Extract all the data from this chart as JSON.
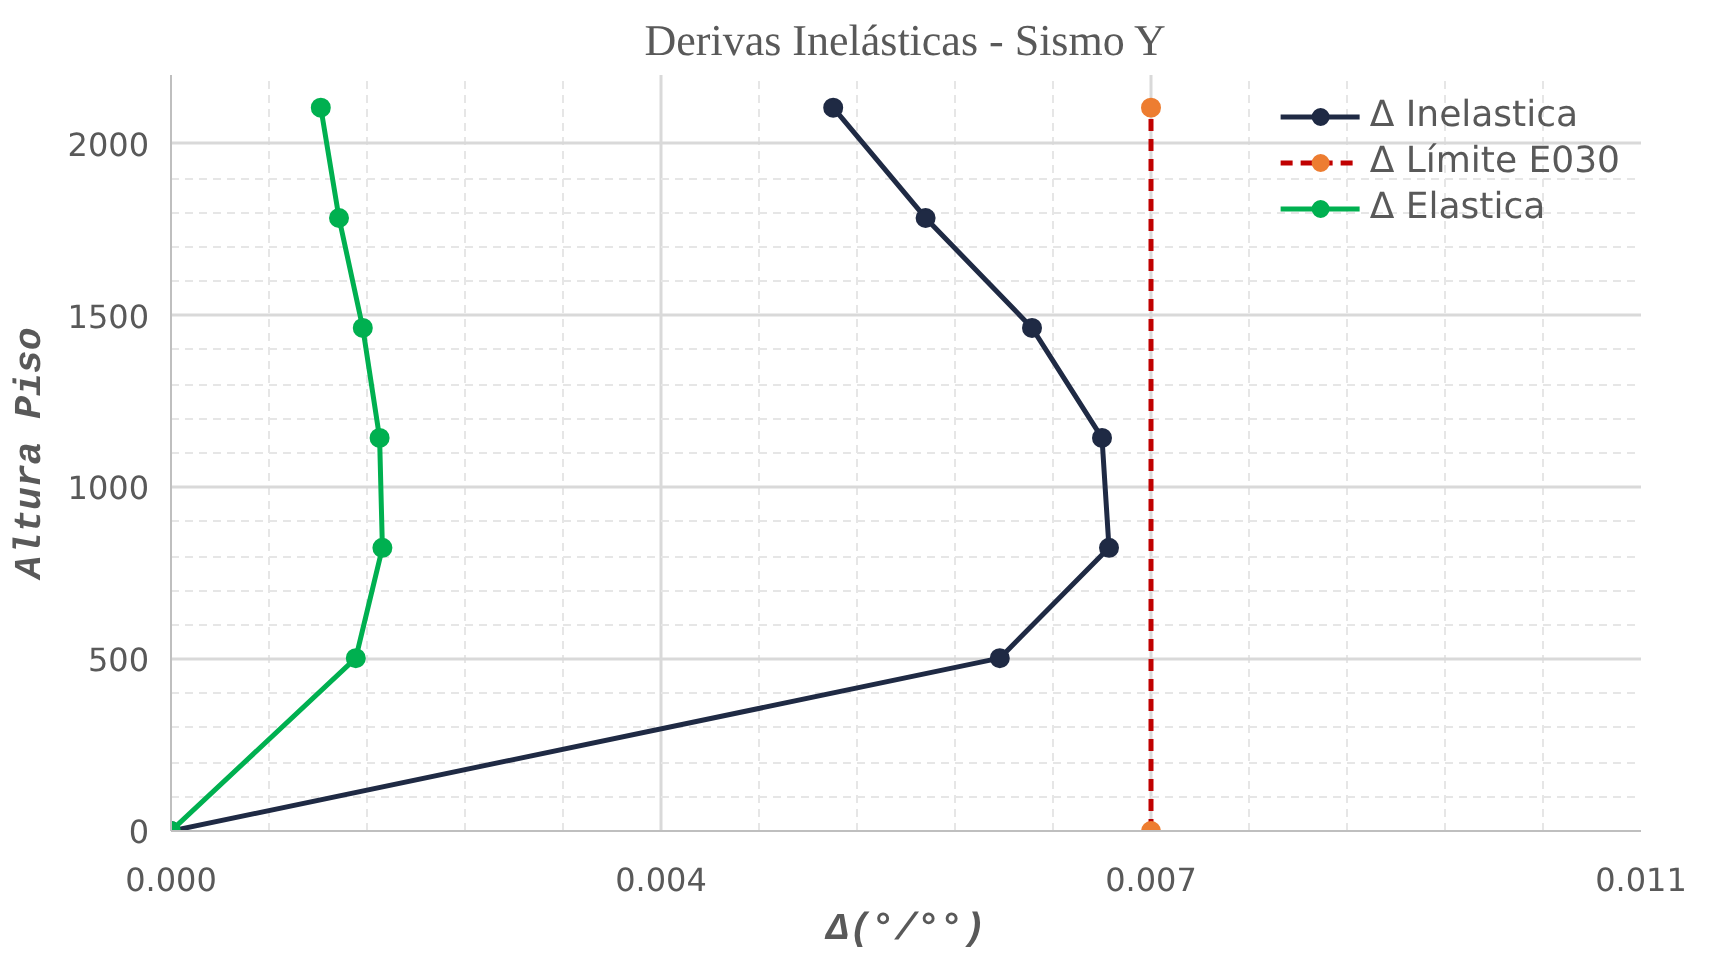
{
  "chart_data": {
    "type": "line",
    "title": "Derivas Inelásticas - Sismo Y",
    "xlabel": "Δ(°/°°)",
    "ylabel": "Altura Piso",
    "xlim": [
      0,
      0.0105
    ],
    "xticks": [
      {
        "value": 0,
        "label": "0.000"
      },
      {
        "value": 0.0035,
        "label": "0.004"
      },
      {
        "value": 0.007,
        "label": "0.007"
      },
      {
        "value": 0.0105,
        "label": "0.011"
      }
    ],
    "ylim": [
      0,
      2200
    ],
    "yticks": [
      0,
      500,
      1000,
      1500,
      2000
    ],
    "grid": true,
    "legend": "top right",
    "marker": "circle",
    "series": [
      {
        "name": "Δ Inelastica",
        "color": "#1f2a44",
        "x": [
          0,
          0.00592,
          0.0067,
          0.00665,
          0.00615,
          0.00539,
          0.00473
        ],
        "values": [
          0,
          503,
          824,
          1144,
          1464,
          1784,
          2105
        ]
      },
      {
        "name": "Δ Límite E030",
        "color": "#c00000",
        "colors": [
          "#ed7d31",
          "#ed7d31"
        ],
        "line_style": "dashed",
        "x": [
          0.007,
          0.007
        ],
        "values": [
          0,
          2105
        ]
      },
      {
        "name": "Δ Elastica",
        "color": "#00b050",
        "x": [
          0,
          0.00132,
          0.00151,
          0.00149,
          0.00137,
          0.0012,
          0.00107
        ],
        "values": [
          0,
          503,
          824,
          1144,
          1464,
          1784,
          2105
        ]
      }
    ]
  }
}
